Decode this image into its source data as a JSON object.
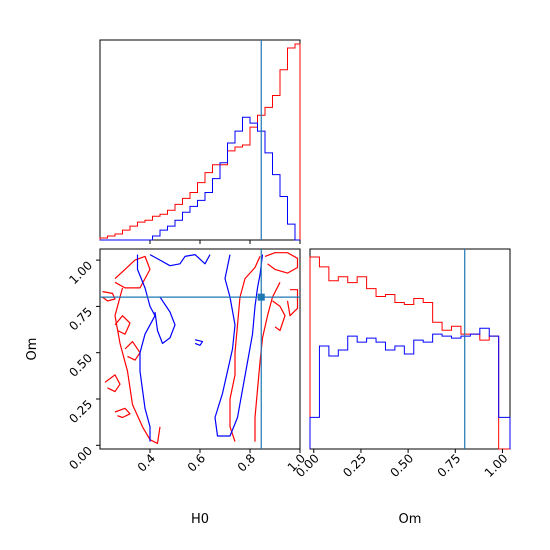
{
  "chart_data": [
    {
      "type": "histogram",
      "panel": "H0 marginal",
      "x_range": [
        0.2,
        1.0
      ],
      "truth": 0.845,
      "truth_color": "#1f77b4",
      "bins": [
        0.2,
        0.23,
        0.26,
        0.29,
        0.32,
        0.35,
        0.38,
        0.41,
        0.44,
        0.47,
        0.5,
        0.53,
        0.56,
        0.59,
        0.62,
        0.65,
        0.68,
        0.71,
        0.74,
        0.77,
        0.8,
        0.83,
        0.86,
        0.89,
        0.92,
        0.95,
        0.98,
        1.0
      ],
      "series": [
        {
          "color": "#ff0000",
          "values": [
            0.01,
            0.02,
            0.03,
            0.05,
            0.07,
            0.09,
            0.1,
            0.12,
            0.13,
            0.15,
            0.18,
            0.21,
            0.24,
            0.29,
            0.34,
            0.38,
            0.38,
            0.45,
            0.47,
            0.48,
            0.57,
            0.63,
            0.67,
            0.73,
            0.86,
            0.97,
            0.99
          ]
        },
        {
          "color": "#0000ff",
          "values": [
            0.0,
            0.0,
            0.0,
            0.0,
            0.0,
            0.0,
            0.0,
            0.02,
            0.05,
            0.07,
            0.1,
            0.14,
            0.17,
            0.2,
            0.24,
            0.31,
            0.39,
            0.49,
            0.55,
            0.62,
            0.59,
            0.55,
            0.44,
            0.33,
            0.22,
            0.08,
            0.0
          ]
        }
      ]
    },
    {
      "type": "contour",
      "panel": "H0 vs Om joint",
      "xlabel": "H0",
      "ylabel": "Om",
      "xlim": [
        0.2,
        1.0
      ],
      "ylim": [
        -0.02,
        1.06
      ],
      "x_ticks": [
        "0.4",
        "0.6",
        "0.8",
        "1.0"
      ],
      "x_tick_values": [
        0.4,
        0.6,
        0.8,
        1.0
      ],
      "y_ticks": [
        "0.00",
        "0.25",
        "0.50",
        "0.75",
        "1.00"
      ],
      "y_tick_values": [
        0.0,
        0.25,
        0.5,
        0.75,
        1.0
      ],
      "truth": {
        "x": 0.845,
        "y": 0.8
      },
      "truth_color": "#1f77b4",
      "contours": [
        {
          "color": "#ff0000",
          "points": [
            [
              0.21,
              0.83
            ],
            [
              0.25,
              0.82
            ],
            [
              0.26,
              0.79
            ],
            [
              0.23,
              0.78
            ],
            [
              0.21,
              0.8
            ]
          ]
        },
        {
          "color": "#ff0000",
          "points": [
            [
              0.26,
              0.9
            ],
            [
              0.3,
              0.95
            ],
            [
              0.34,
              1.0
            ],
            [
              0.38,
              1.02
            ],
            [
              0.4,
              0.95
            ],
            [
              0.36,
              0.85
            ],
            [
              0.3,
              0.85
            ],
            [
              0.26,
              0.88
            ]
          ]
        },
        {
          "color": "#ff0000",
          "points": [
            [
              0.26,
              0.65
            ],
            [
              0.29,
              0.7
            ],
            [
              0.32,
              0.66
            ],
            [
              0.3,
              0.6
            ],
            [
              0.27,
              0.62
            ]
          ]
        },
        {
          "color": "#ff0000",
          "points": [
            [
              0.3,
              0.52
            ],
            [
              0.33,
              0.56
            ],
            [
              0.36,
              0.5
            ],
            [
              0.34,
              0.46
            ],
            [
              0.31,
              0.48
            ]
          ]
        },
        {
          "color": "#ff0000",
          "points": [
            [
              0.22,
              0.34
            ],
            [
              0.26,
              0.38
            ],
            [
              0.28,
              0.33
            ],
            [
              0.26,
              0.29
            ],
            [
              0.23,
              0.31
            ]
          ]
        },
        {
          "color": "#ff0000",
          "points": [
            [
              0.26,
              0.18
            ],
            [
              0.3,
              0.2
            ],
            [
              0.32,
              0.17
            ],
            [
              0.29,
              0.15
            ],
            [
              0.27,
              0.16
            ]
          ]
        },
        {
          "color": "#ff0000",
          "points": [
            [
              0.29,
              0.85
            ],
            [
              0.26,
              0.7
            ],
            [
              0.28,
              0.55
            ],
            [
              0.31,
              0.4
            ],
            [
              0.33,
              0.22
            ],
            [
              0.37,
              0.1
            ],
            [
              0.4,
              0.03
            ],
            [
              0.43,
              0.01
            ],
            [
              0.44,
              0.1
            ]
          ]
        },
        {
          "color": "#ff0000",
          "points": [
            [
              0.84,
              1.02
            ],
            [
              0.82,
              0.96
            ],
            [
              0.78,
              0.9
            ],
            [
              0.76,
              0.8
            ],
            [
              0.75,
              0.65
            ],
            [
              0.74,
              0.5
            ],
            [
              0.74,
              0.38
            ],
            [
              0.72,
              0.25
            ],
            [
              0.72,
              0.1
            ],
            [
              0.74,
              0.02
            ]
          ]
        },
        {
          "color": "#ff0000",
          "points": [
            [
              0.92,
              0.88
            ],
            [
              0.89,
              0.8
            ],
            [
              0.87,
              0.7
            ],
            [
              0.85,
              0.58
            ],
            [
              0.84,
              0.45
            ],
            [
              0.83,
              0.3
            ],
            [
              0.82,
              0.15
            ],
            [
              0.82,
              0.02
            ]
          ]
        },
        {
          "color": "#ff0000",
          "points": [
            [
              0.89,
              0.78
            ],
            [
              0.92,
              0.75
            ],
            [
              0.94,
              0.7
            ],
            [
              0.92,
              0.62
            ],
            [
              0.9,
              0.64
            ]
          ]
        },
        {
          "color": "#ff0000",
          "points": [
            [
              0.86,
              1.02
            ],
            [
              0.9,
              1.04
            ],
            [
              0.95,
              1.04
            ],
            [
              0.99,
              1.01
            ],
            [
              0.99,
              0.96
            ],
            [
              0.95,
              0.93
            ],
            [
              0.9,
              0.95
            ],
            [
              0.87,
              0.98
            ]
          ]
        },
        {
          "color": "#ff0000",
          "points": [
            [
              0.96,
              0.84
            ],
            [
              0.99,
              0.84
            ],
            [
              0.99,
              0.74
            ],
            [
              0.96,
              0.7
            ],
            [
              0.95,
              0.78
            ]
          ]
        },
        {
          "color": "#0000ff",
          "points": [
            [
              0.35,
              1.03
            ],
            [
              0.35,
              0.95
            ],
            [
              0.38,
              0.85
            ],
            [
              0.4,
              0.75
            ],
            [
              0.42,
              0.7
            ],
            [
              0.38,
              0.6
            ],
            [
              0.36,
              0.5
            ],
            [
              0.36,
              0.4
            ],
            [
              0.37,
              0.3
            ],
            [
              0.38,
              0.2
            ],
            [
              0.4,
              0.1
            ],
            [
              0.4,
              0.02
            ]
          ]
        },
        {
          "color": "#0000ff",
          "points": [
            [
              0.4,
              1.03
            ],
            [
              0.44,
              1.0
            ],
            [
              0.48,
              0.97
            ],
            [
              0.52,
              0.98
            ],
            [
              0.54,
              1.02
            ],
            [
              0.58,
              1.03
            ],
            [
              0.62,
              0.98
            ],
            [
              0.64,
              1.03
            ]
          ]
        },
        {
          "color": "#0000ff",
          "points": [
            [
              0.44,
              0.8
            ],
            [
              0.48,
              0.72
            ],
            [
              0.5,
              0.65
            ],
            [
              0.48,
              0.58
            ],
            [
              0.45,
              0.55
            ],
            [
              0.43,
              0.62
            ],
            [
              0.42,
              0.72
            ]
          ]
        },
        {
          "color": "#0000ff",
          "points": [
            [
              0.72,
              1.03
            ],
            [
              0.7,
              0.9
            ],
            [
              0.72,
              0.8
            ],
            [
              0.74,
              0.65
            ],
            [
              0.73,
              0.52
            ],
            [
              0.71,
              0.4
            ],
            [
              0.69,
              0.28
            ],
            [
              0.66,
              0.15
            ],
            [
              0.67,
              0.05
            ],
            [
              0.72,
              0.05
            ],
            [
              0.75,
              0.15
            ],
            [
              0.77,
              0.3
            ],
            [
              0.79,
              0.45
            ],
            [
              0.81,
              0.6
            ],
            [
              0.82,
              0.75
            ],
            [
              0.83,
              0.85
            ],
            [
              0.84,
              0.92
            ],
            [
              0.85,
              1.03
            ]
          ]
        },
        {
          "color": "#0000ff",
          "points": [
            [
              0.58,
              0.57
            ],
            [
              0.61,
              0.56
            ],
            [
              0.6,
              0.54
            ],
            [
              0.58,
              0.55
            ]
          ]
        }
      ]
    },
    {
      "type": "histogram",
      "panel": "Om marginal",
      "xlabel": "Om",
      "x_range": [
        -0.02,
        1.04
      ],
      "x_ticks": [
        "0.00",
        "0.25",
        "0.50",
        "0.75",
        "1.00"
      ],
      "x_tick_values": [
        0.0,
        0.25,
        0.5,
        0.75,
        1.0
      ],
      "truth": 0.8,
      "truth_color": "#1f77b4",
      "bins": [
        -0.02,
        0.03,
        0.08,
        0.13,
        0.18,
        0.23,
        0.28,
        0.33,
        0.38,
        0.43,
        0.48,
        0.53,
        0.58,
        0.63,
        0.68,
        0.73,
        0.78,
        0.83,
        0.88,
        0.93,
        0.98,
        1.04
      ],
      "series": [
        {
          "color": "#ff0000",
          "values": [
            0.97,
            0.92,
            0.85,
            0.87,
            0.84,
            0.87,
            0.81,
            0.77,
            0.78,
            0.74,
            0.73,
            0.76,
            0.74,
            0.64,
            0.6,
            0.62,
            0.58,
            0.58,
            0.55,
            0.57,
            0.0
          ]
        },
        {
          "color": "#0000ff",
          "values": [
            0.16,
            0.52,
            0.47,
            0.5,
            0.57,
            0.54,
            0.56,
            0.54,
            0.5,
            0.52,
            0.48,
            0.55,
            0.54,
            0.58,
            0.57,
            0.56,
            0.57,
            0.58,
            0.61,
            0.57,
            0.16
          ]
        }
      ]
    }
  ]
}
